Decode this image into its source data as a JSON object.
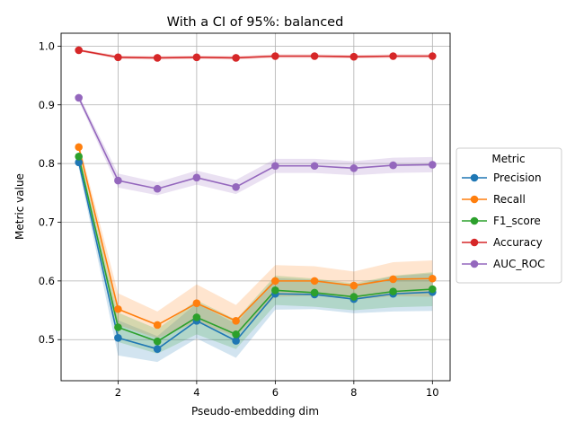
{
  "chart_data": {
    "type": "line",
    "title": "With a CI of 95%: balanced",
    "xlabel": "Pseudo-embedding dim",
    "ylabel": "Metric value",
    "x": [
      1,
      2,
      3,
      4,
      5,
      6,
      7,
      8,
      9,
      10
    ],
    "xlim": [
      0.55,
      10.45
    ],
    "ylim": [
      0.43,
      1.022
    ],
    "xticks": [
      2,
      4,
      6,
      8,
      10
    ],
    "yticks": [
      0.5,
      0.6,
      0.7,
      0.8,
      0.9,
      1.0
    ],
    "ytick_labels": [
      "0.5",
      "0.6",
      "0.7",
      "0.8",
      "0.9",
      "1.0"
    ],
    "grid": true,
    "legend": {
      "title": "Metric",
      "placement": "outside right"
    },
    "series": [
      {
        "name": "Precision",
        "color": "#1f77b4",
        "values": [
          0.802,
          0.503,
          0.484,
          0.532,
          0.498,
          0.578,
          0.577,
          0.569,
          0.578,
          0.581
        ],
        "ci_low": [
          0.792,
          0.473,
          0.462,
          0.502,
          0.469,
          0.551,
          0.552,
          0.545,
          0.548,
          0.549
        ],
        "ci_high": [
          0.812,
          0.533,
          0.506,
          0.562,
          0.527,
          0.605,
          0.602,
          0.593,
          0.608,
          0.613
        ]
      },
      {
        "name": "Recall",
        "color": "#ff7f0e",
        "values": [
          0.828,
          0.552,
          0.525,
          0.562,
          0.532,
          0.6,
          0.6,
          0.592,
          0.603,
          0.604
        ],
        "ci_low": [
          0.82,
          0.525,
          0.502,
          0.53,
          0.505,
          0.573,
          0.575,
          0.568,
          0.574,
          0.573
        ],
        "ci_high": [
          0.836,
          0.579,
          0.548,
          0.594,
          0.559,
          0.627,
          0.625,
          0.616,
          0.632,
          0.635
        ]
      },
      {
        "name": "F1_score",
        "color": "#2ca02c",
        "values": [
          0.812,
          0.521,
          0.497,
          0.538,
          0.509,
          0.584,
          0.58,
          0.573,
          0.582,
          0.586
        ],
        "ci_low": [
          0.804,
          0.496,
          0.476,
          0.509,
          0.484,
          0.559,
          0.556,
          0.55,
          0.555,
          0.557
        ],
        "ci_high": [
          0.82,
          0.546,
          0.518,
          0.567,
          0.534,
          0.609,
          0.604,
          0.596,
          0.609,
          0.615
        ]
      },
      {
        "name": "Accuracy",
        "color": "#d62728",
        "values": [
          0.993,
          0.981,
          0.98,
          0.981,
          0.98,
          0.983,
          0.983,
          0.982,
          0.983,
          0.983
        ],
        "ci_low": [
          0.991,
          0.978,
          0.977,
          0.978,
          0.977,
          0.98,
          0.98,
          0.979,
          0.98,
          0.98
        ],
        "ci_high": [
          0.995,
          0.984,
          0.983,
          0.984,
          0.983,
          0.986,
          0.986,
          0.985,
          0.986,
          0.986
        ]
      },
      {
        "name": "AUC_ROC",
        "color": "#9467bd",
        "values": [
          0.912,
          0.771,
          0.757,
          0.776,
          0.76,
          0.796,
          0.796,
          0.792,
          0.797,
          0.798
        ],
        "ci_low": [
          0.907,
          0.759,
          0.746,
          0.764,
          0.748,
          0.784,
          0.784,
          0.78,
          0.784,
          0.785
        ],
        "ci_high": [
          0.917,
          0.783,
          0.768,
          0.788,
          0.772,
          0.808,
          0.808,
          0.804,
          0.81,
          0.811
        ]
      }
    ]
  }
}
